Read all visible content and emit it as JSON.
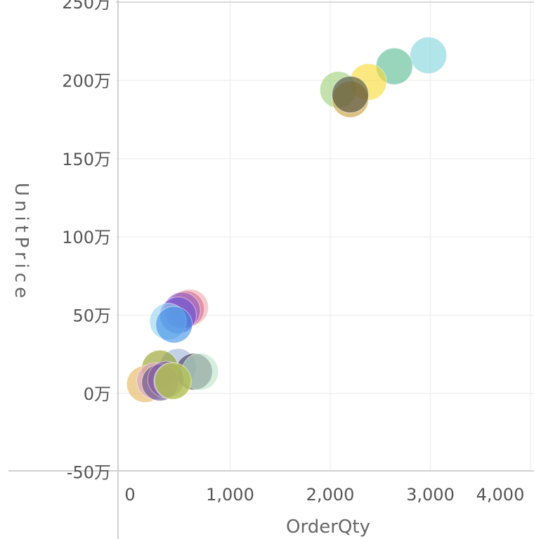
{
  "chart_data": {
    "type": "scatter",
    "xlabel": "OrderQty",
    "ylabel": "UnitPrice",
    "xlim": [
      -100,
      4000
    ],
    "ylim": [
      -580000,
      2500000
    ],
    "x_ticks": [
      {
        "value": 0,
        "label": "0"
      },
      {
        "value": 1000,
        "label": "1,000"
      },
      {
        "value": 2000,
        "label": "2,000"
      },
      {
        "value": 3000,
        "label": "3,000"
      },
      {
        "value": 4000,
        "label": "4,000"
      }
    ],
    "y_ticks": [
      {
        "value": 2500000,
        "label": "250万"
      },
      {
        "value": 2000000,
        "label": "200万"
      },
      {
        "value": 1500000,
        "label": "150万"
      },
      {
        "value": 1000000,
        "label": "100万"
      },
      {
        "value": 500000,
        "label": "50万"
      },
      {
        "value": 0,
        "label": "0万"
      },
      {
        "value": -500000,
        "label": "-50万"
      }
    ],
    "grid": true,
    "marker_opacity": 0.6,
    "points": [
      {
        "x": 2980,
        "y": 2160000,
        "color": "#7fd3dc"
      },
      {
        "x": 2640,
        "y": 2090000,
        "color": "#55b98f"
      },
      {
        "x": 2380,
        "y": 1990000,
        "color": "#f8d92b"
      },
      {
        "x": 2080,
        "y": 1940000,
        "color": "#9ccf74"
      },
      {
        "x": 2200,
        "y": 1880000,
        "color": "#c49a2c"
      },
      {
        "x": 2200,
        "y": 1910000,
        "color": "#4a4a40"
      },
      {
        "x": 600,
        "y": 550000,
        "color": "#f4a3a8"
      },
      {
        "x": 560,
        "y": 540000,
        "color": "#d36a8e"
      },
      {
        "x": 520,
        "y": 530000,
        "color": "#8b5cc8"
      },
      {
        "x": 480,
        "y": 500000,
        "color": "#6a54d6"
      },
      {
        "x": 380,
        "y": 460000,
        "color": "#8fd0f0"
      },
      {
        "x": 440,
        "y": 440000,
        "color": "#3c8fe8"
      },
      {
        "x": 480,
        "y": 170000,
        "color": "#9ab3d8"
      },
      {
        "x": 640,
        "y": 140000,
        "color": "#3f3450"
      },
      {
        "x": 700,
        "y": 140000,
        "color": "#b9e3c6"
      },
      {
        "x": 300,
        "y": 160000,
        "color": "#8f9a1a"
      },
      {
        "x": 150,
        "y": 60000,
        "color": "#e4b25a"
      },
      {
        "x": 250,
        "y": 80000,
        "color": "#d8a0c8"
      },
      {
        "x": 300,
        "y": 70000,
        "color": "#5a4a8a"
      },
      {
        "x": 360,
        "y": 90000,
        "color": "#8a5aa8"
      },
      {
        "x": 420,
        "y": 80000,
        "color": "#a8c8e8"
      },
      {
        "x": 430,
        "y": 80000,
        "color": "#b8c01c"
      }
    ]
  }
}
